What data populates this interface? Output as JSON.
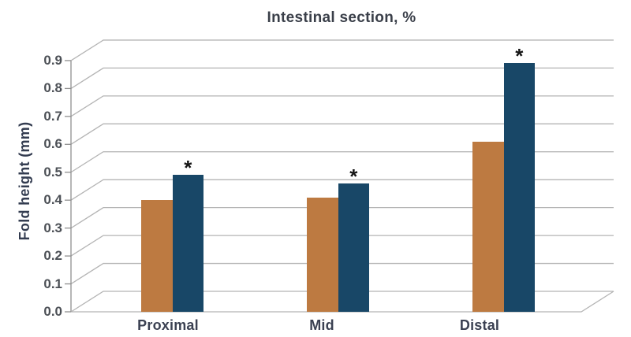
{
  "chart_data": {
    "type": "bar",
    "style": "3d-perspective-back-wall",
    "title": "Intestinal section, %",
    "xlabel": "",
    "ylabel": "Fold height (mm)",
    "categories": [
      "Proximal",
      "Mid",
      "Distal"
    ],
    "series": [
      {
        "name": "series-orange",
        "color": "#bd7a41",
        "values": [
          0.4,
          0.41,
          0.61
        ],
        "significance": [
          "",
          "",
          ""
        ]
      },
      {
        "name": "series-dark-blue",
        "color": "#184767",
        "values": [
          0.49,
          0.46,
          0.89
        ],
        "significance": [
          "*",
          "*",
          "*"
        ]
      }
    ],
    "ylim": [
      0,
      0.9
    ],
    "ytick_step": 0.1,
    "ytick_labels": [
      "0.0",
      "0.1",
      "0.2",
      "0.3",
      "0.4",
      "0.5",
      "0.6",
      "0.7",
      "0.8",
      "0.9"
    ],
    "grid": "on",
    "legend": "none",
    "colors": {
      "grid": "#b4b4b4",
      "axis": "#8f8f8f",
      "asterisk": "#141414"
    }
  }
}
